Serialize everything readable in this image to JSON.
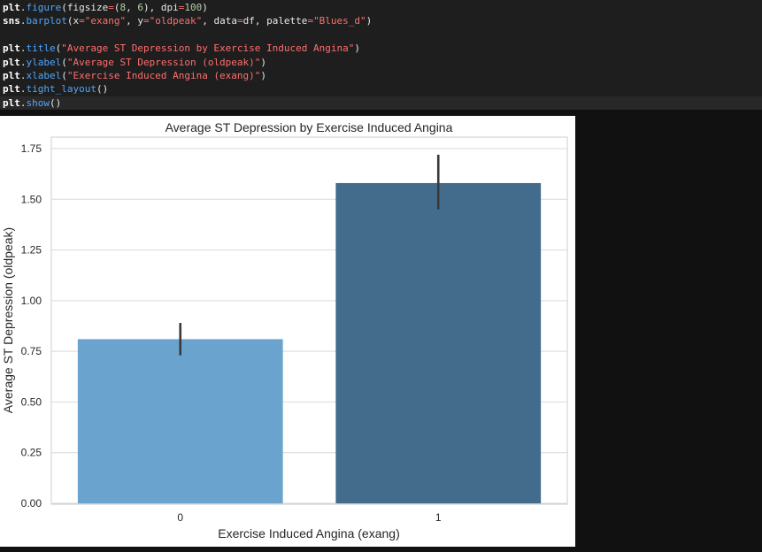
{
  "code_cell": {
    "lines": [
      [
        {
          "t": "plt",
          "c": "name"
        },
        {
          "t": ".",
          "c": "punc"
        },
        {
          "t": "figure",
          "c": "func"
        },
        {
          "t": "(figsize",
          "c": "punc"
        },
        {
          "t": "=",
          "c": "op"
        },
        {
          "t": "(",
          "c": "punc"
        },
        {
          "t": "8",
          "c": "num"
        },
        {
          "t": ", ",
          "c": "punc"
        },
        {
          "t": "6",
          "c": "num"
        },
        {
          "t": "), dpi",
          "c": "punc"
        },
        {
          "t": "=",
          "c": "op"
        },
        {
          "t": "100",
          "c": "num"
        },
        {
          "t": ")",
          "c": "punc"
        }
      ],
      [
        {
          "t": "sns",
          "c": "name"
        },
        {
          "t": ".",
          "c": "punc"
        },
        {
          "t": "barplot",
          "c": "func"
        },
        {
          "t": "(x",
          "c": "punc"
        },
        {
          "t": "=",
          "c": "op"
        },
        {
          "t": "\"exang\"",
          "c": "str"
        },
        {
          "t": ", y",
          "c": "punc"
        },
        {
          "t": "=",
          "c": "op"
        },
        {
          "t": "\"oldpeak\"",
          "c": "str"
        },
        {
          "t": ", data",
          "c": "punc"
        },
        {
          "t": "=",
          "c": "op"
        },
        {
          "t": "df, palette",
          "c": "punc"
        },
        {
          "t": "=",
          "c": "op"
        },
        {
          "t": "\"Blues_d\"",
          "c": "str"
        },
        {
          "t": ")",
          "c": "punc"
        }
      ],
      [],
      [
        {
          "t": "plt",
          "c": "name"
        },
        {
          "t": ".",
          "c": "punc"
        },
        {
          "t": "title",
          "c": "func"
        },
        {
          "t": "(",
          "c": "punc"
        },
        {
          "t": "\"Average ST Depression by Exercise Induced Angina\"",
          "c": "str"
        },
        {
          "t": ")",
          "c": "punc"
        }
      ],
      [
        {
          "t": "plt",
          "c": "name"
        },
        {
          "t": ".",
          "c": "punc"
        },
        {
          "t": "ylabel",
          "c": "func"
        },
        {
          "t": "(",
          "c": "punc"
        },
        {
          "t": "\"Average ST Depression (oldpeak)\"",
          "c": "str"
        },
        {
          "t": ")",
          "c": "punc"
        }
      ],
      [
        {
          "t": "plt",
          "c": "name"
        },
        {
          "t": ".",
          "c": "punc"
        },
        {
          "t": "xlabel",
          "c": "func"
        },
        {
          "t": "(",
          "c": "punc"
        },
        {
          "t": "\"Exercise Induced Angina (exang)\"",
          "c": "str"
        },
        {
          "t": ")",
          "c": "punc"
        }
      ],
      [
        {
          "t": "plt",
          "c": "name"
        },
        {
          "t": ".",
          "c": "punc"
        },
        {
          "t": "tight_layout",
          "c": "func"
        },
        {
          "t": "()",
          "c": "punc"
        }
      ],
      [
        {
          "t": "plt",
          "c": "name"
        },
        {
          "t": ".",
          "c": "punc"
        },
        {
          "t": "show",
          "c": "func"
        },
        {
          "t": "()",
          "c": "punc"
        }
      ]
    ]
  },
  "chart_data": {
    "type": "bar",
    "title": "Average ST Depression by Exercise Induced Angina",
    "xlabel": "Exercise Induced Angina (exang)",
    "ylabel": "Average ST Depression (oldpeak)",
    "categories": [
      "0",
      "1"
    ],
    "values": [
      0.81,
      1.58
    ],
    "error_bars": [
      [
        0.73,
        0.89
      ],
      [
        1.45,
        1.72
      ]
    ],
    "bar_colors": [
      "#6aa3cd",
      "#426b8c"
    ],
    "ylim": [
      0,
      1.8
    ],
    "yticks": [
      0.0,
      0.25,
      0.5,
      0.75,
      1.0,
      1.25,
      1.5,
      1.75
    ],
    "ytick_labels": [
      "0.00",
      "0.25",
      "0.50",
      "0.75",
      "1.00",
      "1.25",
      "1.50",
      "1.75"
    ],
    "grid": true
  }
}
